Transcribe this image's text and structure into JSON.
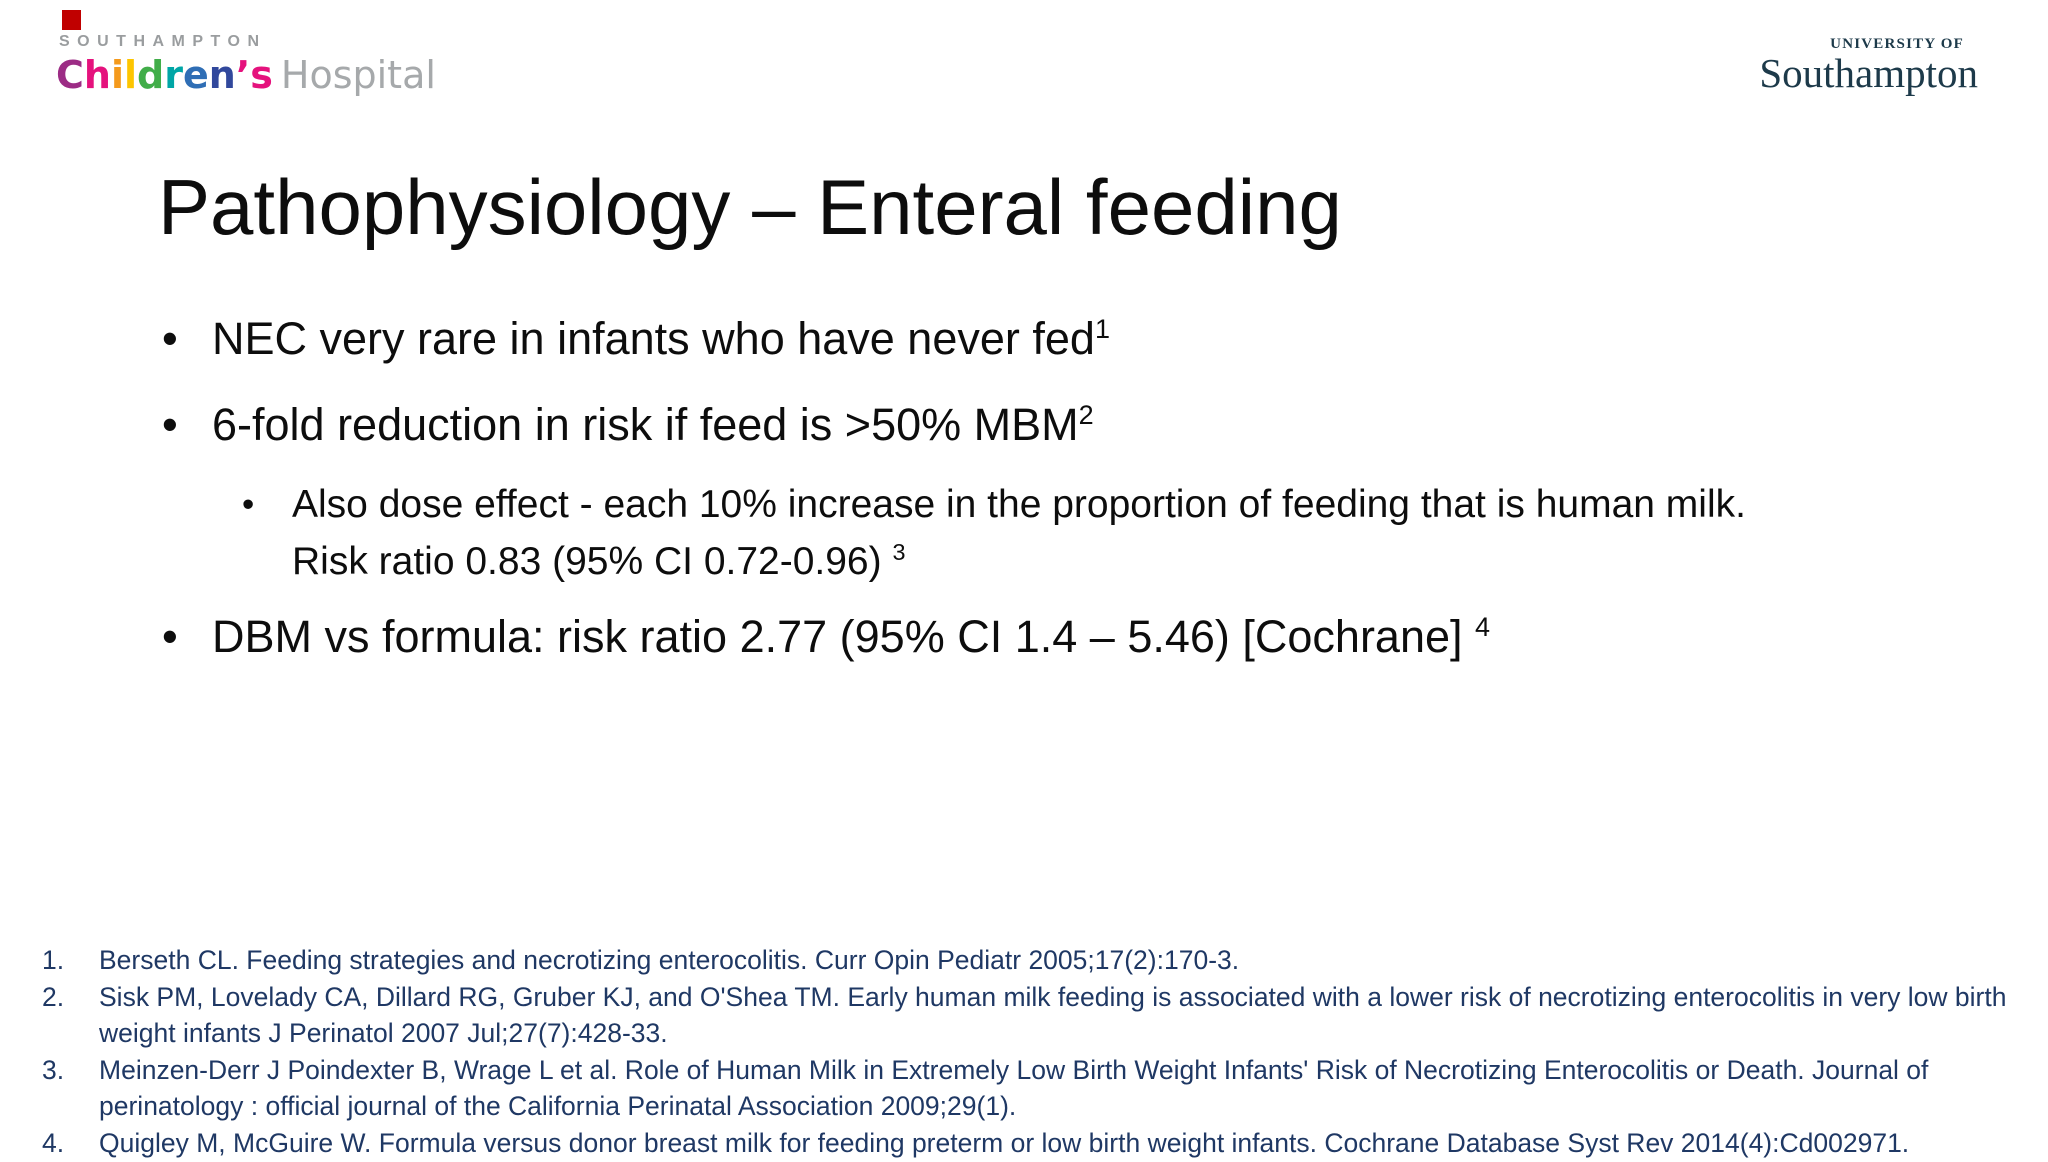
{
  "marker_color": "#c00000",
  "logos": {
    "childrens": {
      "southampton": "SOUTHAMPTON",
      "letters": [
        {
          "ch": "C",
          "color": "#9c2c85"
        },
        {
          "ch": "h",
          "color": "#e5127d"
        },
        {
          "ch": "i",
          "color": "#f49a1c"
        },
        {
          "ch": "l",
          "color": "#fdc500"
        },
        {
          "ch": "d",
          "color": "#41ad49"
        },
        {
          "ch": "r",
          "color": "#00a6a6"
        },
        {
          "ch": "e",
          "color": "#2f6eb5"
        },
        {
          "ch": "n",
          "color": "#31489c"
        },
        {
          "ch": "’",
          "color": "#e5127d"
        },
        {
          "ch": "s",
          "color": "#e5127d"
        }
      ],
      "hospital": "Hospital"
    },
    "university": {
      "line1": "UNIVERSITY OF",
      "line2": "Southampton"
    }
  },
  "title": "Pathophysiology – Enteral feeding",
  "bullets": [
    {
      "level": 1,
      "text": "NEC very rare in infants who have never fed",
      "sup": "1"
    },
    {
      "level": 1,
      "text": "6-fold reduction in risk if feed is >50% MBM",
      "sup": "2"
    },
    {
      "level": 2,
      "text": "Also dose effect - each 10% increase in the proportion of feeding that is human milk. Risk ratio 0.83 (95% CI 0.72-0.96) ",
      "sup": "3"
    },
    {
      "level": 1,
      "text": "DBM vs formula: risk ratio 2.77 (95% CI 1.4 – 5.46) [Cochrane] ",
      "sup": "4"
    }
  ],
  "references": [
    {
      "num": "1.",
      "text": "Berseth CL. Feeding strategies and necrotizing enterocolitis. Curr Opin Pediatr 2005;17(2):170-3."
    },
    {
      "num": "2.",
      "text": "Sisk PM, Lovelady CA, Dillard RG, Gruber KJ, and O'Shea TM. Early human milk feeding is associated with a lower risk of necrotizing enterocolitis in very low birth weight infants J Perinatol 2007 Jul;27(7):428-33."
    },
    {
      "num": "3.",
      "text": "Meinzen-Derr  J Poindexter B, Wrage L et al. Role of Human Milk in Extremely Low Birth Weight Infants' Risk of Necrotizing Enterocolitis or Death. Journal of perinatology : official journal of the California Perinatal Association 2009;29(1)."
    },
    {
      "num": "4.",
      "text": "Quigley M, McGuire W. Formula versus donor breast milk for feeding preterm or low birth weight infants. Cochrane Database Syst Rev 2014(4):Cd002971."
    }
  ],
  "colors": {
    "reference_text": "#1f3864",
    "body_text": "#0d0d0d",
    "logo_gray": "#9a9d9f",
    "university_navy": "#1d3a4a"
  }
}
